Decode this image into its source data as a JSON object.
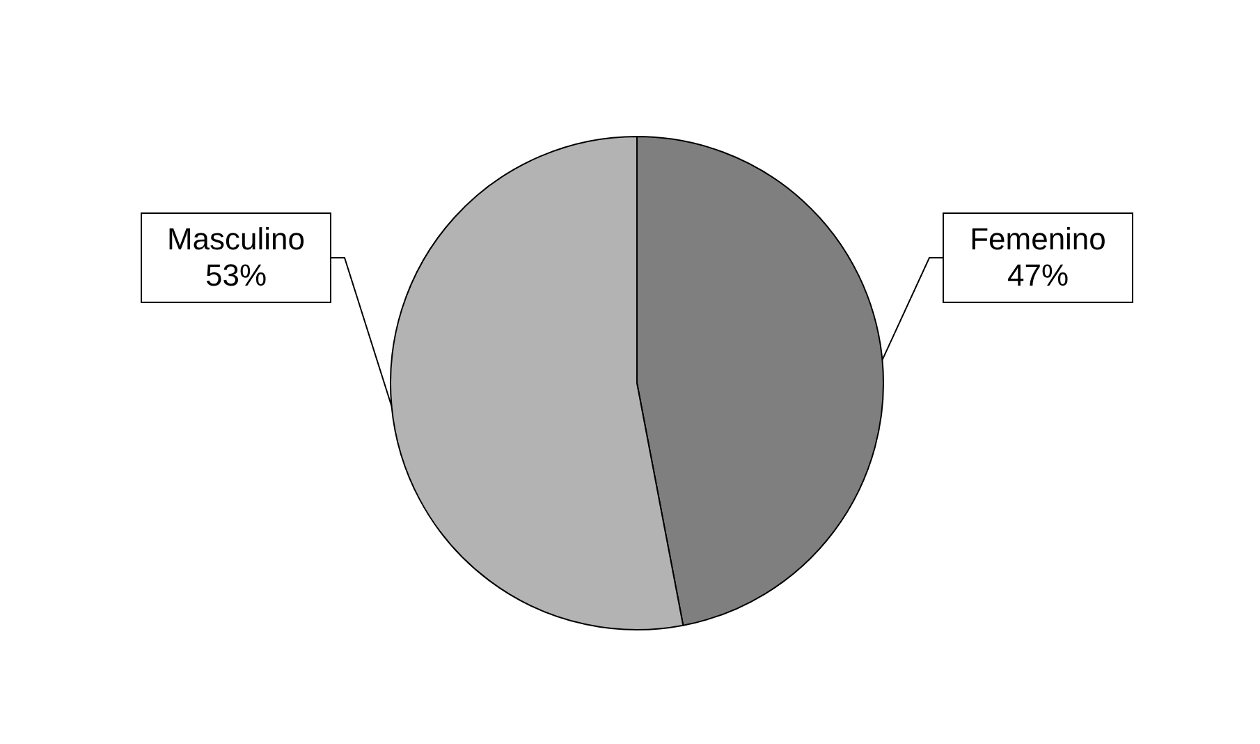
{
  "chart_data": {
    "type": "pie",
    "categories": [
      "Femenino",
      "Masculino"
    ],
    "values": [
      47,
      53
    ],
    "colors": [
      "#7f7f7f",
      "#b3b3b3"
    ],
    "value_labels": [
      "47%",
      "53%"
    ],
    "legend": false
  }
}
